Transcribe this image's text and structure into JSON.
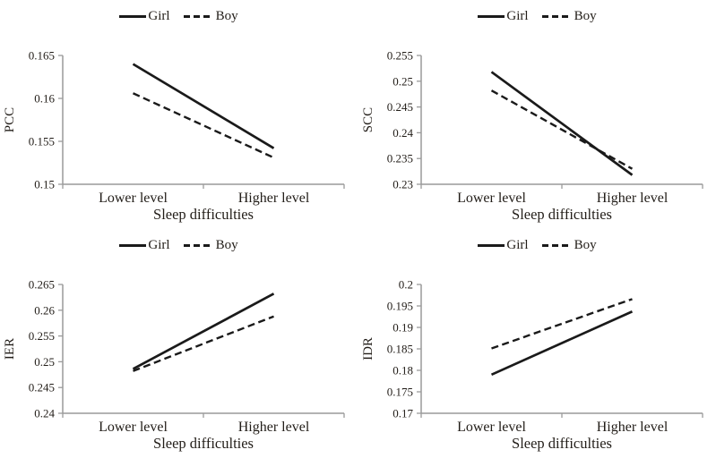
{
  "colors": {
    "line": "#1a1a1a",
    "axis": "#9a9a9a",
    "text": "#221d18",
    "background": "#ffffff"
  },
  "chart_data": [
    {
      "type": "line",
      "panel": "top-left",
      "ylabel": "PCC",
      "xlabel": "Sleep difficulties",
      "categories": [
        "Lower level",
        "Higher level"
      ],
      "ylim": [
        0.15,
        0.165
      ],
      "yticks": [
        "0.15",
        "0.155",
        "0.16",
        "0.165"
      ],
      "grid": false,
      "legend_position": "top-center",
      "series": [
        {
          "name": "Girl",
          "style": "solid",
          "values": [
            0.164,
            0.1542
          ]
        },
        {
          "name": "Boy",
          "style": "dashed",
          "values": [
            0.1606,
            0.1531
          ]
        }
      ]
    },
    {
      "type": "line",
      "panel": "top-right",
      "ylabel": "SCC",
      "xlabel": "Sleep difficulties",
      "categories": [
        "Lower level",
        "Higher level"
      ],
      "ylim": [
        0.23,
        0.255
      ],
      "yticks": [
        "0.23",
        "0.235",
        "0.24",
        "0.245",
        "0.25",
        "0.255"
      ],
      "grid": false,
      "legend_position": "top-center",
      "series": [
        {
          "name": "Girl",
          "style": "solid",
          "values": [
            0.2518,
            0.2318
          ]
        },
        {
          "name": "Boy",
          "style": "dashed",
          "values": [
            0.2482,
            0.233
          ]
        }
      ]
    },
    {
      "type": "line",
      "panel": "bottom-left",
      "ylabel": "IER",
      "xlabel": "Sleep difficulties",
      "categories": [
        "Lower level",
        "Higher level"
      ],
      "ylim": [
        0.24,
        0.265
      ],
      "yticks": [
        "0.24",
        "0.245",
        "0.25",
        "0.255",
        "0.26",
        "0.265"
      ],
      "grid": false,
      "legend_position": "top-center",
      "series": [
        {
          "name": "Girl",
          "style": "solid",
          "values": [
            0.2486,
            0.2632
          ]
        },
        {
          "name": "Boy",
          "style": "dashed",
          "values": [
            0.2482,
            0.2588
          ]
        }
      ]
    },
    {
      "type": "line",
      "panel": "bottom-right",
      "ylabel": "IDR",
      "xlabel": "Sleep difficulties",
      "categories": [
        "Lower level",
        "Higher level"
      ],
      "ylim": [
        0.17,
        0.2
      ],
      "yticks": [
        "0.17",
        "0.175",
        "0.18",
        "0.185",
        "0.19",
        "0.195",
        "0.2"
      ],
      "grid": false,
      "legend_position": "top-center",
      "series": [
        {
          "name": "Girl",
          "style": "solid",
          "values": [
            0.179,
            0.1937
          ]
        },
        {
          "name": "Boy",
          "style": "dashed",
          "values": [
            0.1851,
            0.1966
          ]
        }
      ]
    }
  ]
}
